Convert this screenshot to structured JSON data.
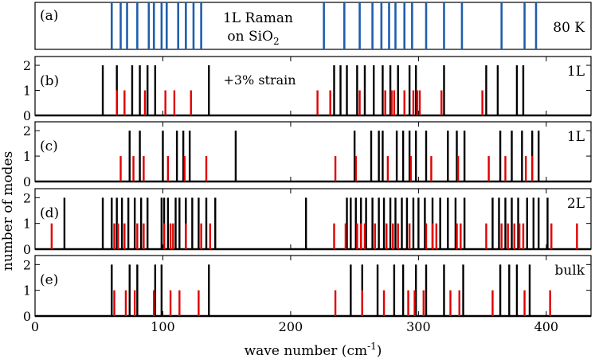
{
  "chart_data": {
    "type": "bar",
    "xlabel": "wave number (cm",
    "xlabel_sup": "-1",
    "xlabel_end": ")",
    "ylabel": "number of modes",
    "xlim": [
      0,
      435
    ],
    "x_ticks": [
      0,
      100,
      200,
      300,
      400
    ],
    "colors": {
      "black": "#000000",
      "red": "#e00000",
      "blue": "#1f5fae"
    },
    "panel_a": {
      "tag": "(a)",
      "title_line1": "1L Raman",
      "title_line2": "on SiO",
      "title_sub": "2",
      "temp": "80 K",
      "lines": [
        60,
        67,
        72,
        80,
        89,
        93,
        99,
        103,
        112,
        118,
        124,
        130,
        226,
        242,
        254,
        264,
        271,
        277,
        282,
        289,
        295,
        306,
        320,
        334,
        365,
        383,
        392
      ]
    },
    "panels": [
      {
        "tag": "(b)",
        "label": "1L",
        "note": "+3% strain",
        "y_ticks": [
          0,
          1,
          2
        ],
        "ylim": [
          0,
          2.35
        ],
        "black": [
          53,
          64,
          76,
          82,
          88,
          94,
          136,
          234,
          239,
          244,
          252,
          258,
          265,
          272,
          278,
          284,
          293,
          298,
          320,
          353,
          362,
          377,
          382
        ],
        "red": [
          64,
          70,
          86,
          102,
          109,
          122,
          221,
          231,
          254,
          274,
          279,
          281,
          289,
          296,
          299,
          301,
          318,
          350
        ]
      },
      {
        "tag": "(c)",
        "label": "1L",
        "y_ticks": [
          0,
          1,
          2
        ],
        "ylim": [
          0,
          2.35
        ],
        "black": [
          74,
          82,
          100,
          111,
          116,
          121,
          157,
          250,
          263,
          269,
          272,
          283,
          288,
          293,
          298,
          306,
          323,
          330,
          336,
          364,
          373,
          381,
          389,
          394
        ],
        "red": [
          67,
          77,
          85,
          104,
          117,
          134,
          235,
          251,
          276,
          294,
          310,
          331,
          355,
          368,
          384,
          389
        ]
      },
      {
        "tag": "(d)",
        "label": "2L",
        "y_ticks": [
          0,
          1,
          2
        ],
        "ylim": [
          0,
          2.35
        ],
        "black": [
          23,
          53,
          60,
          64,
          68,
          73,
          78,
          83,
          88,
          99,
          101,
          104,
          110,
          113,
          118,
          123,
          128,
          134,
          141,
          212,
          244,
          247,
          251,
          255,
          259,
          264,
          269,
          273,
          278,
          282,
          287,
          291,
          296,
          300,
          305,
          311,
          317,
          323,
          329,
          336,
          358,
          363,
          368,
          373,
          378,
          385,
          390,
          394,
          401
        ],
        "red": [
          13,
          62,
          65,
          70,
          80,
          85,
          101,
          106,
          108,
          118,
          130,
          137,
          234,
          243,
          252,
          255,
          258,
          266,
          275,
          280,
          284,
          293,
          306,
          311,
          314,
          330,
          333,
          353,
          365,
          370,
          375,
          379,
          382,
          404,
          424
        ]
      },
      {
        "tag": "(e)",
        "label": "bulk",
        "y_ticks": [
          0,
          1,
          2
        ],
        "ylim": [
          0,
          2.35
        ],
        "black": [
          60,
          74,
          80,
          94,
          99,
          136,
          247,
          256,
          268,
          281,
          288,
          298,
          306,
          320,
          335,
          364,
          371,
          377,
          387
        ],
        "red": [
          62,
          71,
          78,
          93,
          106,
          113,
          128,
          235,
          256,
          273,
          292,
          297,
          304,
          325,
          332,
          358,
          383,
          403
        ]
      }
    ]
  }
}
